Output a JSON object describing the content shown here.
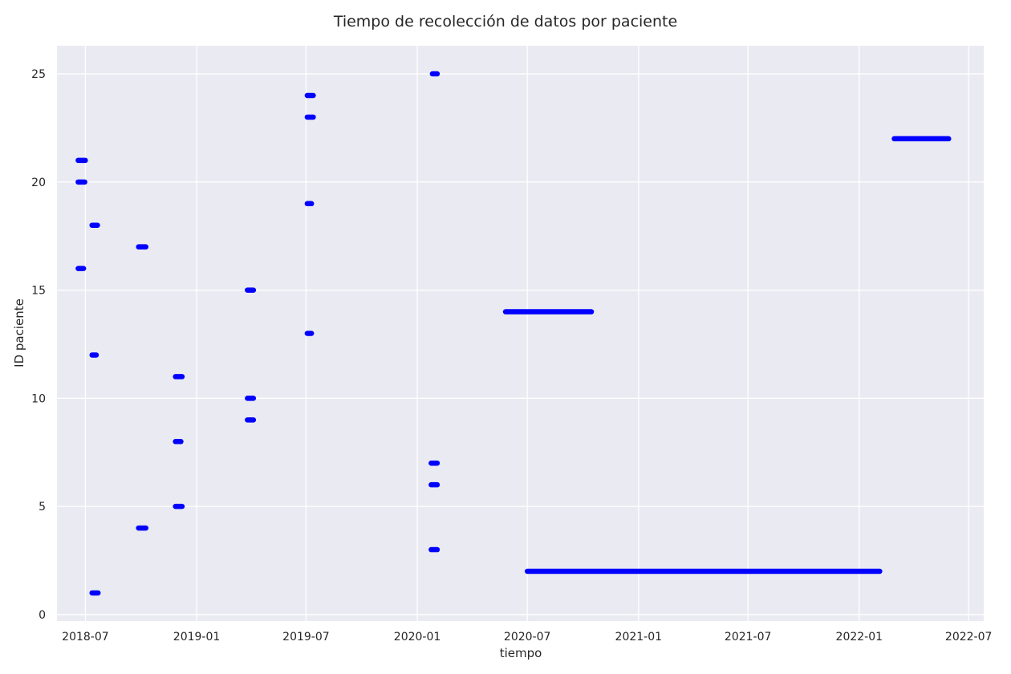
{
  "chart_data": {
    "type": "timeline",
    "title": "Tiempo de recolección de datos por paciente",
    "xlabel": "tiempo",
    "ylabel": "ID paciente",
    "x_tick_labels": [
      "2018-07",
      "2019-01",
      "2019-07",
      "2020-01",
      "2020-07",
      "2021-01",
      "2021-07",
      "2022-01",
      "2022-07"
    ],
    "y_ticks": [
      0,
      5,
      10,
      15,
      20,
      25
    ],
    "xlim": [
      "2018-05-15",
      "2022-07-26"
    ],
    "ylim": [
      -0.3,
      26.3
    ],
    "grid": true,
    "series": [
      {
        "color": "#0000ff",
        "segments": [
          {
            "id": 1,
            "start": "2018-07-12",
            "end": "2018-07-22"
          },
          {
            "id": 2,
            "start": "2020-07-01",
            "end": "2022-02-04"
          },
          {
            "id": 3,
            "start": "2020-01-24",
            "end": "2020-02-03"
          },
          {
            "id": 4,
            "start": "2018-09-27",
            "end": "2018-10-09"
          },
          {
            "id": 5,
            "start": "2018-11-27",
            "end": "2018-12-08"
          },
          {
            "id": 6,
            "start": "2020-01-24",
            "end": "2020-02-03"
          },
          {
            "id": 7,
            "start": "2020-01-24",
            "end": "2020-02-03"
          },
          {
            "id": 8,
            "start": "2018-11-27",
            "end": "2018-12-06"
          },
          {
            "id": 9,
            "start": "2019-03-26",
            "end": "2019-04-05"
          },
          {
            "id": 10,
            "start": "2019-03-26",
            "end": "2019-04-05"
          },
          {
            "id": 11,
            "start": "2018-11-27",
            "end": "2018-12-08"
          },
          {
            "id": 12,
            "start": "2018-07-12",
            "end": "2018-07-19"
          },
          {
            "id": 13,
            "start": "2019-07-03",
            "end": "2019-07-10"
          },
          {
            "id": 14,
            "start": "2020-05-26",
            "end": "2020-10-15"
          },
          {
            "id": 15,
            "start": "2019-03-26",
            "end": "2019-04-05"
          },
          {
            "id": 16,
            "start": "2018-06-19",
            "end": "2018-06-28"
          },
          {
            "id": 17,
            "start": "2018-09-27",
            "end": "2018-10-09"
          },
          {
            "id": 18,
            "start": "2018-07-12",
            "end": "2018-07-21"
          },
          {
            "id": 19,
            "start": "2019-07-03",
            "end": "2019-07-10"
          },
          {
            "id": 20,
            "start": "2018-06-19",
            "end": "2018-06-30"
          },
          {
            "id": 21,
            "start": "2018-06-19",
            "end": "2018-07-01"
          },
          {
            "id": 22,
            "start": "2022-02-28",
            "end": "2022-05-29"
          },
          {
            "id": 23,
            "start": "2019-07-03",
            "end": "2019-07-13"
          },
          {
            "id": 24,
            "start": "2019-07-03",
            "end": "2019-07-13"
          },
          {
            "id": 25,
            "start": "2020-01-26",
            "end": "2020-02-03"
          }
        ]
      }
    ]
  }
}
